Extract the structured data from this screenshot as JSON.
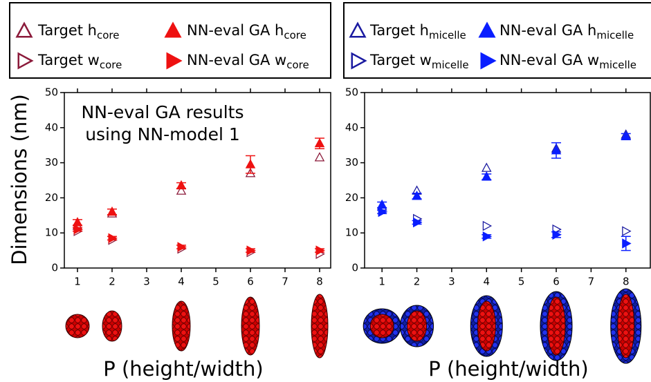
{
  "chart_data": [
    {
      "type": "scatter",
      "ylabel": "Dimensions (nm)",
      "xlabel": "P (height/width)",
      "annotation": [
        "NN-eval GA results",
        "using NN-model 1"
      ],
      "x": [
        1,
        2,
        4,
        6,
        8
      ],
      "xlim": [
        0.62,
        8.32
      ],
      "xticks": [
        1,
        2,
        3,
        4,
        5,
        6,
        7,
        8
      ],
      "ylim": [
        0,
        50
      ],
      "yticks": [
        0,
        10,
        20,
        30,
        40,
        50
      ],
      "series": [
        {
          "name": "Target h",
          "subscript": "core",
          "marker": "triangle-up",
          "filled": false,
          "color": "#8b1a3a",
          "values": [
            12,
            15.5,
            22,
            27,
            31.5
          ]
        },
        {
          "name": "NN-eval GA h",
          "subscript": "core",
          "marker": "triangle-up",
          "filled": true,
          "color": "#ee1111",
          "values": [
            13,
            16,
            23.5,
            29.5,
            35.5
          ],
          "errors": [
            0.8,
            0.8,
            0.8,
            2.5,
            1.5
          ]
        },
        {
          "name": "Target w",
          "subscript": "core",
          "marker": "triangle-right",
          "filled": false,
          "color": "#8b1a3a",
          "values": [
            10.5,
            8,
            5.5,
            4.5,
            4
          ]
        },
        {
          "name": "NN-eval GA w",
          "subscript": "core",
          "marker": "triangle-right",
          "filled": true,
          "color": "#ee1111",
          "values": [
            11,
            8.5,
            6,
            5,
            5
          ],
          "errors": [
            0.5,
            0.5,
            0.5,
            0.5,
            0.5
          ]
        }
      ]
    },
    {
      "type": "scatter",
      "xlabel": "P (height/width)",
      "x": [
        1,
        2,
        4,
        6,
        8
      ],
      "xlim": [
        0.5,
        8.7
      ],
      "xticks": [
        1,
        2,
        3,
        4,
        5,
        6,
        7,
        8
      ],
      "ylim": [
        0,
        50
      ],
      "yticks": [
        0,
        10,
        20,
        30,
        40,
        50
      ],
      "series": [
        {
          "name": "Target h",
          "subscript": "micelle",
          "marker": "triangle-up",
          "filled": false,
          "color": "#1a1aa0",
          "values": [
            17.5,
            22,
            28.5,
            34,
            38
          ]
        },
        {
          "name": "NN-eval GA h",
          "subscript": "micelle",
          "marker": "triangle-up",
          "filled": true,
          "color": "#0a1eff",
          "values": [
            18,
            20.5,
            26,
            33.5,
            37.5
          ],
          "errors": [
            0.8,
            0.8,
            0.8,
            2.2,
            0.8
          ]
        },
        {
          "name": "Target w",
          "subscript": "micelle",
          "marker": "triangle-right",
          "filled": false,
          "color": "#1a1aa0",
          "values": [
            16,
            14,
            12,
            11,
            10.5
          ]
        },
        {
          "name": "NN-eval GA w",
          "subscript": "micelle",
          "marker": "triangle-right",
          "filled": true,
          "color": "#0a1eff",
          "values": [
            16,
            13,
            9,
            9.5,
            7
          ],
          "errors": [
            0.5,
            0.5,
            0.5,
            0.8,
            2.0
          ]
        }
      ]
    }
  ]
}
